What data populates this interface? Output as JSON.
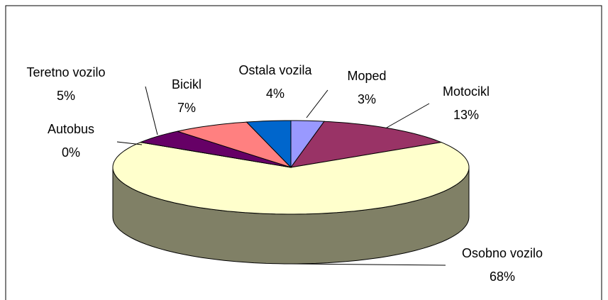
{
  "chart_data": {
    "type": "pie3d",
    "categories": [
      "Moped",
      "Motocikl",
      "Osobno vozilo",
      "Autobus",
      "Teretno vozilo",
      "Bicikl",
      "Ostala vozila"
    ],
    "values": [
      3,
      13,
      68,
      0,
      5,
      7,
      4
    ],
    "value_labels": [
      "3%",
      "13%",
      "68%",
      "0%",
      "5%",
      "7%",
      "4%"
    ],
    "colors": [
      "#9999ff",
      "#993366",
      "#ffffcc",
      "#ccffff",
      "#660066",
      "#ff8080",
      "#0066cc"
    ]
  }
}
